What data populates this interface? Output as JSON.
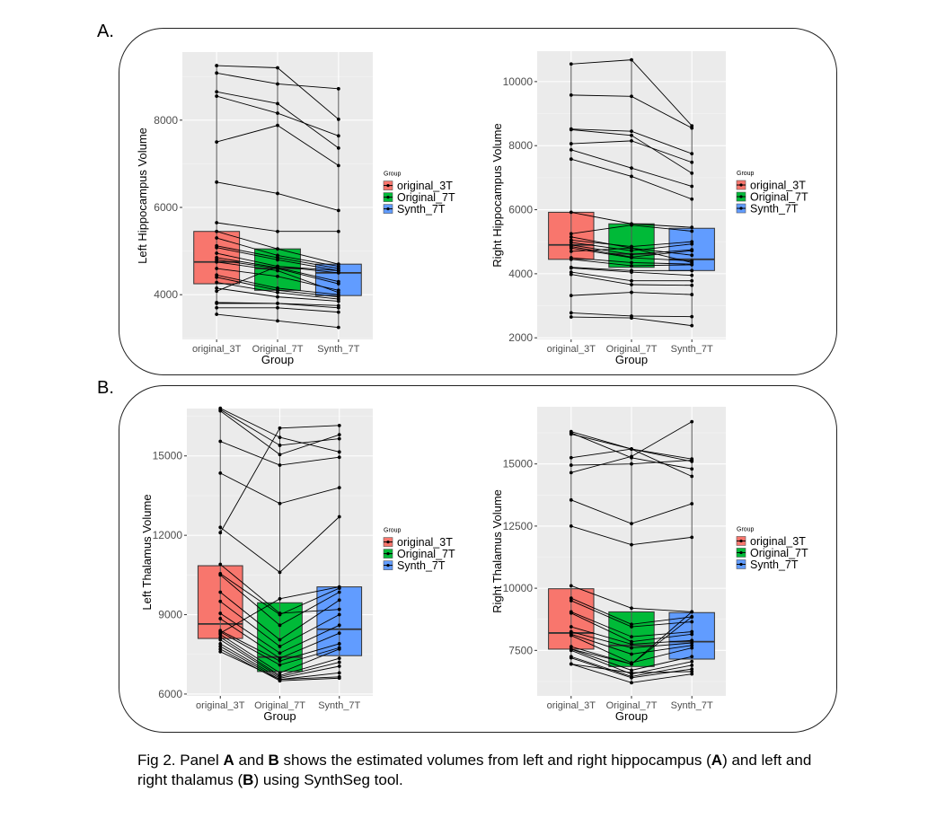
{
  "panels": [
    {
      "label": "A."
    },
    {
      "label": "B."
    }
  ],
  "colors": {
    "original_3T": "#F8766D",
    "Original_7T": "#00BA38",
    "Synth_7T": "#619CFF",
    "panel_bg": "#EBEBEB",
    "grid": "#FFFFFF"
  },
  "caption": {
    "t1": "Fig 2. Panel ",
    "b1": "A",
    "t2": " and ",
    "b2": "B",
    "t3": " shows the estimated volumes from left and right hippocampus (",
    "b3": "A",
    "t4": ") and left and right thalamus (",
    "b4": "B",
    "t5": ") using SynthSeg tool."
  },
  "chart_data": [
    {
      "type": "box",
      "title": "",
      "xlabel": "Group",
      "ylabel": "Left Hippocampus Volume",
      "categories": [
        "original_3T",
        "Original_7T",
        "Synth_7T"
      ],
      "ylim": [
        2975,
        9560
      ],
      "yticks": [
        4000,
        6000,
        8000
      ],
      "ytick_labels": [
        "4000",
        "6000",
        "8000"
      ],
      "legend": {
        "title": "Group",
        "entries": [
          "original_3T",
          "Original_7T",
          "Synth_7T"
        ],
        "position": "right"
      },
      "boxes": [
        {
          "q1": 4250,
          "median": 4750,
          "q3": 5450
        },
        {
          "q1": 4100,
          "median": 4600,
          "q3": 5050
        },
        {
          "q1": 3980,
          "median": 4500,
          "q3": 4700
        }
      ],
      "subjects": [
        [
          9250,
          9200,
          8020
        ],
        [
          9080,
          8830,
          8720
        ],
        [
          8650,
          8380,
          7360
        ],
        [
          8550,
          8160,
          7640
        ],
        [
          7500,
          7880,
          6960
        ],
        [
          6580,
          6320,
          5930
        ],
        [
          5650,
          5450,
          5450
        ],
        [
          5450,
          5050,
          4700
        ],
        [
          5300,
          4900,
          4650
        ],
        [
          5120,
          4850,
          4600
        ],
        [
          5080,
          4800,
          4550
        ],
        [
          4950,
          4650,
          4500
        ],
        [
          4850,
          4620,
          4300
        ],
        [
          4800,
          4600,
          4250
        ],
        [
          4750,
          4550,
          4050
        ],
        [
          4600,
          4420,
          4100
        ],
        [
          4450,
          4150,
          4000
        ],
        [
          4400,
          4100,
          3950
        ],
        [
          4280,
          4050,
          3900
        ],
        [
          4150,
          3950,
          3850
        ],
        [
          4080,
          4650,
          4550
        ],
        [
          3820,
          3800,
          3750
        ],
        [
          3800,
          3800,
          3700
        ],
        [
          3700,
          3700,
          3600
        ],
        [
          3550,
          3400,
          3250
        ]
      ]
    },
    {
      "type": "box",
      "title": "",
      "xlabel": "Group",
      "ylabel": "Right Hippocampus Volume",
      "categories": [
        "original_3T",
        "Original_7T",
        "Synth_7T"
      ],
      "ylim": [
        1950,
        10950
      ],
      "yticks": [
        2000,
        4000,
        6000,
        8000,
        10000
      ],
      "ytick_labels": [
        "2000",
        "4000",
        "6000",
        "8000",
        "10000"
      ],
      "legend": {
        "title": "Group",
        "entries": [
          "original_3T",
          "Original_7T",
          "Synth_7T"
        ],
        "position": "right"
      },
      "boxes": [
        {
          "q1": 4450,
          "median": 4900,
          "q3": 5920
        },
        {
          "q1": 4200,
          "median": 4620,
          "q3": 5560
        },
        {
          "q1": 4100,
          "median": 4450,
          "q3": 5420
        }
      ],
      "subjects": [
        [
          10550,
          10680,
          8620
        ],
        [
          9580,
          9540,
          8550
        ],
        [
          8520,
          8450,
          7750
        ],
        [
          8500,
          8320,
          7140
        ],
        [
          8060,
          8150,
          7480
        ],
        [
          7870,
          7300,
          6730
        ],
        [
          7580,
          7040,
          6330
        ],
        [
          5920,
          5560,
          5450
        ],
        [
          5250,
          5520,
          5330
        ],
        [
          5150,
          4800,
          4580
        ],
        [
          5050,
          4850,
          5000
        ],
        [
          4980,
          4720,
          4930
        ],
        [
          4900,
          4600,
          4750
        ],
        [
          4850,
          4520,
          4720
        ],
        [
          4800,
          4500,
          4400
        ],
        [
          4700,
          4800,
          4350
        ],
        [
          4500,
          4350,
          4300
        ],
        [
          4450,
          4250,
          4280
        ],
        [
          4200,
          4100,
          4100
        ],
        [
          4180,
          4050,
          3950
        ],
        [
          4050,
          3780,
          3780
        ],
        [
          3980,
          3660,
          3640
        ],
        [
          3320,
          3420,
          3350
        ],
        [
          2780,
          2680,
          2660
        ],
        [
          2650,
          2620,
          2380
        ]
      ]
    },
    {
      "type": "box",
      "title": "",
      "xlabel": "Group",
      "ylabel": "Left Thalamus Volume",
      "categories": [
        "original_3T",
        "Original_7T",
        "Synth_7T"
      ],
      "ylim": [
        5930,
        16790
      ],
      "yticks": [
        6000,
        9000,
        12000,
        15000
      ],
      "ytick_labels": [
        "6000",
        "9000",
        "12000",
        "15000"
      ],
      "legend": {
        "title": "Group",
        "entries": [
          "original_3T",
          "Original_7T",
          "Synth_7T"
        ],
        "position": "right"
      },
      "boxes": [
        {
          "q1": 8100,
          "median": 8650,
          "q3": 10850
        },
        {
          "q1": 6850,
          "median": 7400,
          "q3": 9450
        },
        {
          "q1": 7450,
          "median": 8450,
          "q3": 10050
        }
      ],
      "subjects": [
        [
          16800,
          15700,
          15150
        ],
        [
          16750,
          15400,
          15650
        ],
        [
          16700,
          15050,
          15800
        ],
        [
          15550,
          14650,
          14950
        ],
        [
          14350,
          13200,
          13800
        ],
        [
          12300,
          10600,
          12700
        ],
        [
          12100,
          16050,
          16150
        ],
        [
          10900,
          9050,
          9200
        ],
        [
          10550,
          9000,
          10000
        ],
        [
          10500,
          8600,
          9850
        ],
        [
          9850,
          8050,
          9550
        ],
        [
          9500,
          7800,
          9000
        ],
        [
          9050,
          7550,
          8600
        ],
        [
          8850,
          7350,
          8300
        ],
        [
          8400,
          7250,
          7900
        ],
        [
          8350,
          7100,
          7750
        ],
        [
          8300,
          9600,
          10050
        ],
        [
          8250,
          6800,
          7700
        ],
        [
          8150,
          6700,
          7350
        ],
        [
          8050,
          6650,
          7200
        ],
        [
          7900,
          6600,
          7050
        ],
        [
          7800,
          6550,
          6800
        ],
        [
          7700,
          6500,
          6600
        ],
        [
          7600,
          6550,
          6650
        ]
      ]
    },
    {
      "type": "box",
      "title": "",
      "xlabel": "Group",
      "ylabel": "Right Thalamus Volume",
      "categories": [
        "original_3T",
        "Original_7T",
        "Synth_7T"
      ],
      "ylim": [
        5670,
        17300
      ],
      "yticks": [
        7500,
        10000,
        12500,
        15000
      ],
      "ytick_labels": [
        "7500",
        "10000",
        "12500",
        "15000"
      ],
      "legend": {
        "title": "Group",
        "entries": [
          "original_3T",
          "Original_7T",
          "Synth_7T"
        ],
        "position": "right"
      },
      "boxes": [
        {
          "q1": 7550,
          "median": 8200,
          "q3": 9980
        },
        {
          "q1": 6850,
          "median": 7700,
          "q3": 9050
        },
        {
          "q1": 7150,
          "median": 7850,
          "q3": 9020
        }
      ],
      "subjects": [
        [
          16300,
          15600,
          15200
        ],
        [
          16250,
          15250,
          14800
        ],
        [
          16200,
          15600,
          14500
        ],
        [
          15250,
          15600,
          15100
        ],
        [
          14950,
          15000,
          15150
        ],
        [
          14650,
          15300,
          16700
        ],
        [
          13550,
          12600,
          13400
        ],
        [
          12500,
          11750,
          12050
        ],
        [
          10100,
          9200,
          9050
        ],
        [
          9600,
          8550,
          8850
        ],
        [
          9500,
          8450,
          8650
        ],
        [
          9050,
          8050,
          8250
        ],
        [
          9000,
          7850,
          8150
        ],
        [
          8450,
          7750,
          7900
        ],
        [
          8250,
          7600,
          7800
        ],
        [
          8150,
          7350,
          7700
        ],
        [
          8100,
          7000,
          7600
        ],
        [
          7650,
          6950,
          8850
        ],
        [
          7550,
          6950,
          9050
        ],
        [
          7550,
          6700,
          7250
        ],
        [
          7500,
          6550,
          7050
        ],
        [
          7250,
          6450,
          6900
        ],
        [
          7200,
          6400,
          6750
        ],
        [
          6950,
          6600,
          6650
        ],
        [
          6950,
          6200,
          6550
        ]
      ]
    }
  ]
}
